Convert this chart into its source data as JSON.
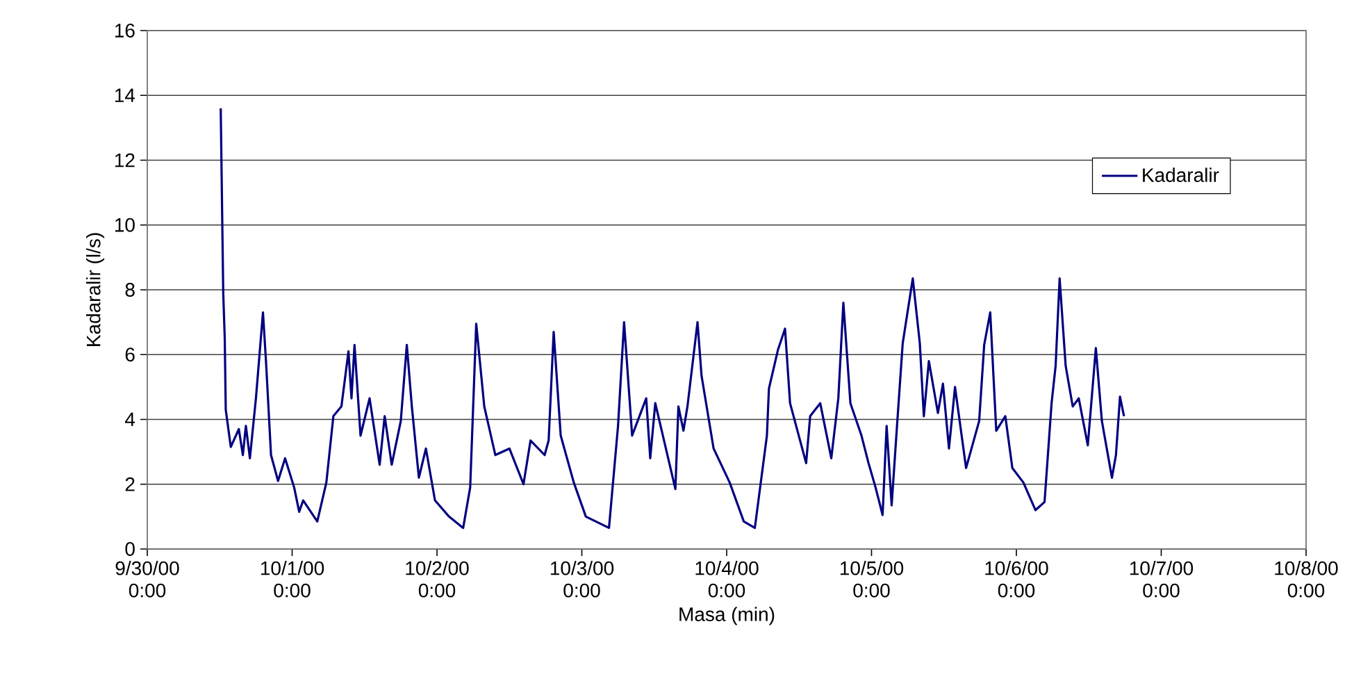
{
  "chart_data": {
    "type": "line",
    "xlabel": "Masa (min)",
    "ylabel": "Kadaralir (l/s)",
    "x": [
      "2000-09-30T12:10",
      "2000-09-30T12:35",
      "2000-09-30T12:50",
      "2000-09-30T13:00",
      "2000-09-30T13:50",
      "2000-09-30T15:10",
      "2000-09-30T15:50",
      "2000-09-30T16:20",
      "2000-09-30T17:00",
      "2000-09-30T18:00",
      "2000-09-30T19:10",
      "2000-09-30T19:40",
      "2000-09-30T20:30",
      "2000-09-30T21:40",
      "2000-09-30T22:50",
      "2000-10-01T00:20",
      "2000-10-01T01:10",
      "2000-10-01T01:50",
      "2000-10-01T04:10",
      "2000-10-01T05:40",
      "2000-10-01T06:50",
      "2000-10-01T08:10",
      "2000-10-01T09:20",
      "2000-10-01T09:50",
      "2000-10-01T10:20",
      "2000-10-01T11:20",
      "2000-10-01T12:50",
      "2000-10-01T14:30",
      "2000-10-01T15:20",
      "2000-10-01T16:30",
      "2000-10-01T18:00",
      "2000-10-01T19:00",
      "2000-10-01T19:50",
      "2000-10-01T21:00",
      "2000-10-01T22:10",
      "2000-10-01T23:40",
      "2000-10-02T02:00",
      "2000-10-02T04:20",
      "2000-10-02T05:30",
      "2000-10-02T06:30",
      "2000-10-02T07:50",
      "2000-10-02T09:40",
      "2000-10-02T12:00",
      "2000-10-02T14:20",
      "2000-10-02T15:30",
      "2000-10-02T17:50",
      "2000-10-02T18:30",
      "2000-10-02T19:20",
      "2000-10-02T20:30",
      "2000-10-02T22:40",
      "2000-10-03T00:40",
      "2000-10-03T04:30",
      "2000-10-03T06:00",
      "2000-10-03T07:00",
      "2000-10-03T08:20",
      "2000-10-03T10:40",
      "2000-10-03T11:20",
      "2000-10-03T12:10",
      "2000-10-03T15:30",
      "2000-10-03T16:00",
      "2000-10-03T16:50",
      "2000-10-03T17:30",
      "2000-10-03T19:10",
      "2000-10-03T19:50",
      "2000-10-03T21:50",
      "2000-10-04T00:30",
      "2000-10-04T02:50",
      "2000-10-04T04:40",
      "2000-10-04T06:40",
      "2000-10-04T07:00",
      "2000-10-04T08:30",
      "2000-10-04T09:40",
      "2000-10-04T10:30",
      "2000-10-04T13:10",
      "2000-10-04T13:50",
      "2000-10-04T15:30",
      "2000-10-04T17:20",
      "2000-10-04T18:30",
      "2000-10-04T19:20",
      "2000-10-04T20:30",
      "2000-10-04T22:20",
      "2000-10-04T23:30",
      "2000-10-05T00:40",
      "2000-10-05T01:50",
      "2000-10-05T02:30",
      "2000-10-05T03:20",
      "2000-10-05T04:10",
      "2000-10-05T05:10",
      "2000-10-05T06:50",
      "2000-10-05T08:00",
      "2000-10-05T08:40",
      "2000-10-05T09:30",
      "2000-10-05T11:00",
      "2000-10-05T11:50",
      "2000-10-05T12:50",
      "2000-10-05T13:50",
      "2000-10-05T15:40",
      "2000-10-05T17:50",
      "2000-10-05T18:40",
      "2000-10-05T19:40",
      "2000-10-05T20:40",
      "2000-10-05T22:10",
      "2000-10-05T23:20",
      "2000-10-06T01:10",
      "2000-10-06T03:10",
      "2000-10-06T04:40",
      "2000-10-06T05:50",
      "2000-10-06T06:30",
      "2000-10-06T07:10",
      "2000-10-06T08:10",
      "2000-10-06T09:20",
      "2000-10-06T10:20",
      "2000-10-06T11:50",
      "2000-10-06T13:10",
      "2000-10-06T14:10",
      "2000-10-06T15:50",
      "2000-10-06T16:30",
      "2000-10-06T17:10",
      "2000-10-06T17:50"
    ],
    "series": [
      {
        "name": "Kadaralir",
        "color": "#000080",
        "values": [
          13.6,
          7.9,
          6.5,
          4.3,
          3.15,
          3.7,
          2.9,
          3.8,
          2.8,
          4.65,
          7.3,
          5.8,
          2.9,
          2.1,
          2.8,
          1.9,
          1.15,
          1.5,
          0.85,
          2.05,
          4.1,
          4.4,
          6.1,
          4.65,
          6.3,
          3.5,
          4.65,
          2.6,
          4.1,
          2.6,
          3.95,
          6.3,
          4.4,
          2.2,
          3.1,
          1.5,
          1.0,
          0.65,
          1.9,
          6.95,
          4.4,
          2.9,
          3.1,
          2.0,
          3.35,
          2.9,
          3.35,
          6.7,
          3.5,
          2.05,
          1.0,
          0.65,
          3.8,
          7.0,
          3.5,
          4.65,
          2.8,
          4.5,
          1.85,
          4.4,
          3.65,
          4.4,
          7.0,
          5.35,
          3.1,
          2.05,
          0.85,
          0.65,
          3.5,
          4.95,
          6.15,
          6.8,
          4.5,
          2.65,
          4.1,
          4.5,
          2.8,
          4.65,
          7.6,
          4.5,
          3.5,
          2.65,
          1.9,
          1.05,
          3.8,
          1.35,
          3.65,
          6.35,
          8.35,
          6.35,
          4.1,
          5.8,
          4.2,
          5.1,
          3.1,
          5.0,
          2.5,
          3.95,
          6.3,
          7.3,
          3.65,
          4.1,
          2.5,
          2.05,
          1.2,
          1.45,
          4.5,
          5.65,
          8.35,
          5.65,
          4.4,
          4.65,
          3.2,
          6.2,
          3.95,
          2.2,
          2.9,
          4.7,
          4.1
        ]
      }
    ],
    "xlim": [
      "2000-09-30T00:00",
      "2000-10-08T00:00"
    ],
    "xticks": [
      {
        "value": "2000-09-30T00:00",
        "label": "9/30/00 0:00"
      },
      {
        "value": "2000-10-01T00:00",
        "label": "10/1/00 0:00"
      },
      {
        "value": "2000-10-02T00:00",
        "label": "10/2/00 0:00"
      },
      {
        "value": "2000-10-03T00:00",
        "label": "10/3/00 0:00"
      },
      {
        "value": "2000-10-04T00:00",
        "label": "10/4/00 0:00"
      },
      {
        "value": "2000-10-05T00:00",
        "label": "10/5/00 0:00"
      },
      {
        "value": "2000-10-06T00:00",
        "label": "10/6/00 0:00"
      },
      {
        "value": "2000-10-07T00:00",
        "label": "10/7/00 0:00"
      },
      {
        "value": "2000-10-08T00:00",
        "label": "10/8/00 0:00"
      }
    ],
    "ylim": [
      0,
      16
    ],
    "yticks": [
      0,
      2,
      4,
      6,
      8,
      10,
      12,
      14,
      16
    ],
    "grid": "y",
    "legend": "top right",
    "marker": "none",
    "line_style": "solid"
  }
}
